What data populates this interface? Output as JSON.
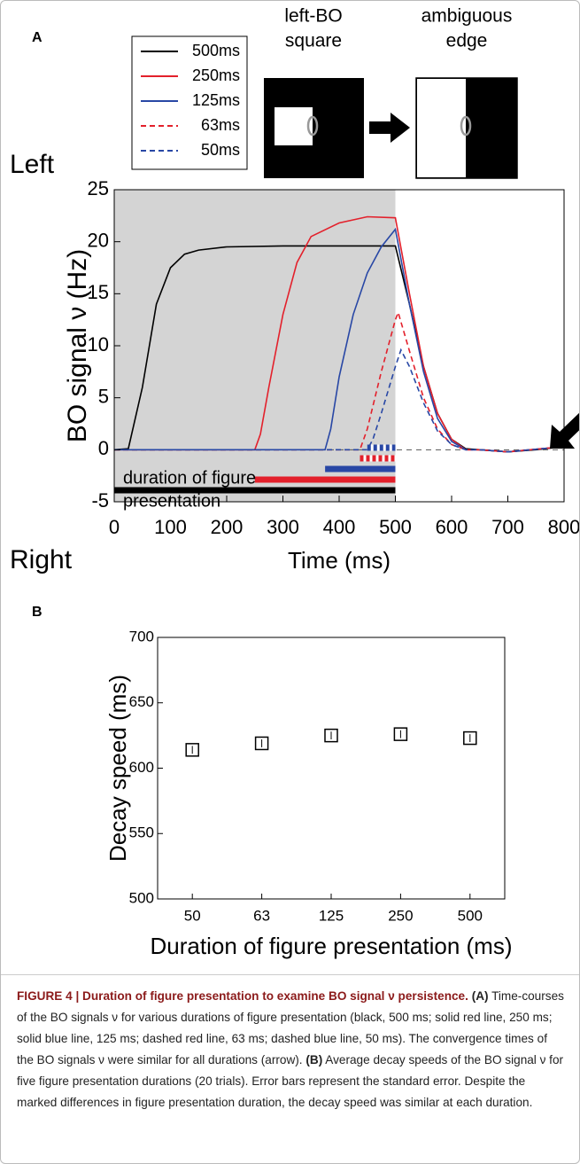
{
  "chart_data": [
    {
      "type": "line",
      "panel": "A",
      "row_labels": [
        "Left",
        "Right"
      ],
      "diagram": {
        "left_square": [
          "left-BO",
          "square"
        ],
        "right_square": [
          "ambiguous",
          "edge"
        ]
      },
      "annotation": [
        "duration of figure",
        "presentation"
      ],
      "xlabel": "Time (ms)",
      "ylabel": "BO signal ν (Hz)",
      "xlim": [
        0,
        800
      ],
      "xticks": [
        0,
        100,
        200,
        300,
        400,
        500,
        600,
        700,
        800
      ],
      "ylim": [
        -5,
        25
      ],
      "yticks": [
        -5,
        0,
        5,
        10,
        15,
        20,
        25
      ],
      "shade": [
        0,
        500
      ],
      "hline": 0,
      "legend": "upper left",
      "series": [
        {
          "name": "500ms",
          "color": "#000000",
          "style": "solid",
          "bar": [
            0,
            500
          ],
          "x": [
            0,
            25,
            50,
            75,
            100,
            125,
            150,
            200,
            300,
            400,
            500,
            525,
            550,
            575,
            600,
            625,
            650,
            700,
            750,
            800
          ],
          "values": [
            0,
            0.1,
            6,
            14,
            17.5,
            18.8,
            19.2,
            19.5,
            19.6,
            19.6,
            19.6,
            14,
            8,
            3.5,
            1,
            0.1,
            0,
            -0.2,
            0,
            0.3
          ]
        },
        {
          "name": "250ms",
          "color": "#e3202b",
          "style": "solid",
          "bar": [
            250,
            500
          ],
          "x": [
            0,
            100,
            200,
            250,
            260,
            275,
            300,
            325,
            350,
            400,
            450,
            500,
            525,
            550,
            575,
            600,
            625,
            650,
            700,
            800
          ],
          "values": [
            0,
            0,
            0,
            0,
            1.5,
            6,
            13,
            18,
            20.5,
            21.8,
            22.4,
            22.3,
            15,
            8,
            3.5,
            1,
            0,
            0,
            -0.2,
            0.3
          ]
        },
        {
          "name": "125ms",
          "color": "#2847a5",
          "style": "solid",
          "bar": [
            375,
            500
          ],
          "x": [
            0,
            200,
            375,
            385,
            400,
            425,
            450,
            475,
            500,
            525,
            550,
            575,
            600,
            625,
            650,
            700,
            800
          ],
          "values": [
            0,
            0,
            0,
            2,
            7,
            13,
            17,
            19.5,
            21.2,
            14,
            7.5,
            3,
            0.8,
            0,
            0,
            -0.2,
            0.3
          ]
        },
        {
          "name": "63ms",
          "color": "#e3202b",
          "style": "dashed",
          "bar": [
            437,
            500
          ],
          "x": [
            0,
            437,
            450,
            475,
            500,
            505,
            525,
            550,
            575,
            600,
            625,
            650,
            700,
            800
          ],
          "values": [
            0,
            0,
            2,
            7.5,
            12.5,
            13.2,
            9.5,
            5,
            2,
            0.5,
            0,
            0,
            -0.2,
            0.3
          ]
        },
        {
          "name": "50ms",
          "color": "#2847a5",
          "style": "dashed",
          "bar": [
            450,
            500
          ],
          "x": [
            0,
            450,
            460,
            475,
            500,
            510,
            525,
            550,
            575,
            600,
            625,
            650,
            700,
            800
          ],
          "values": [
            0,
            0,
            1,
            3.5,
            8,
            9.6,
            8,
            4.5,
            1.8,
            0.5,
            0,
            0,
            -0.2,
            0.3
          ]
        }
      ]
    },
    {
      "type": "scatter",
      "panel": "B",
      "xlabel": "Duration of figure presentation (ms)",
      "ylabel": "Decay speed (ms)",
      "categories": [
        "50",
        "63",
        "125",
        "250",
        "500"
      ],
      "values": [
        614,
        619,
        625,
        626,
        623
      ],
      "errors": [
        3,
        3,
        3,
        3,
        3
      ],
      "color": "#000000",
      "ylim": [
        500,
        700
      ],
      "yticks": [
        500,
        550,
        600,
        650,
        700
      ]
    }
  ],
  "caption": {
    "segments": [
      {
        "text": "FIGURE 4 | Duration of figure presentation to examine BO signal ν persistence.",
        "bold": true
      },
      {
        "text": "(A)",
        "bold": true
      },
      {
        "text": "Time-courses of the BO signals ν for various durations of figure presentation (black, 500 ms; solid red line, 250 ms; solid blue line, 125 ms; dashed red line, 63 ms; dashed blue line, 50 ms). The convergence times of the BO signals ν were similar for all durations (arrow).",
        "bold": false
      },
      {
        "text": "(B)",
        "bold": true
      },
      {
        "text": "Average decay speeds of the BO signal ν for five figure presentation durations (20 trials). Error bars represent the standard error. Despite the marked differences in figure presentation duration, the decay speed was similar at each duration.",
        "bold": false
      }
    ]
  }
}
